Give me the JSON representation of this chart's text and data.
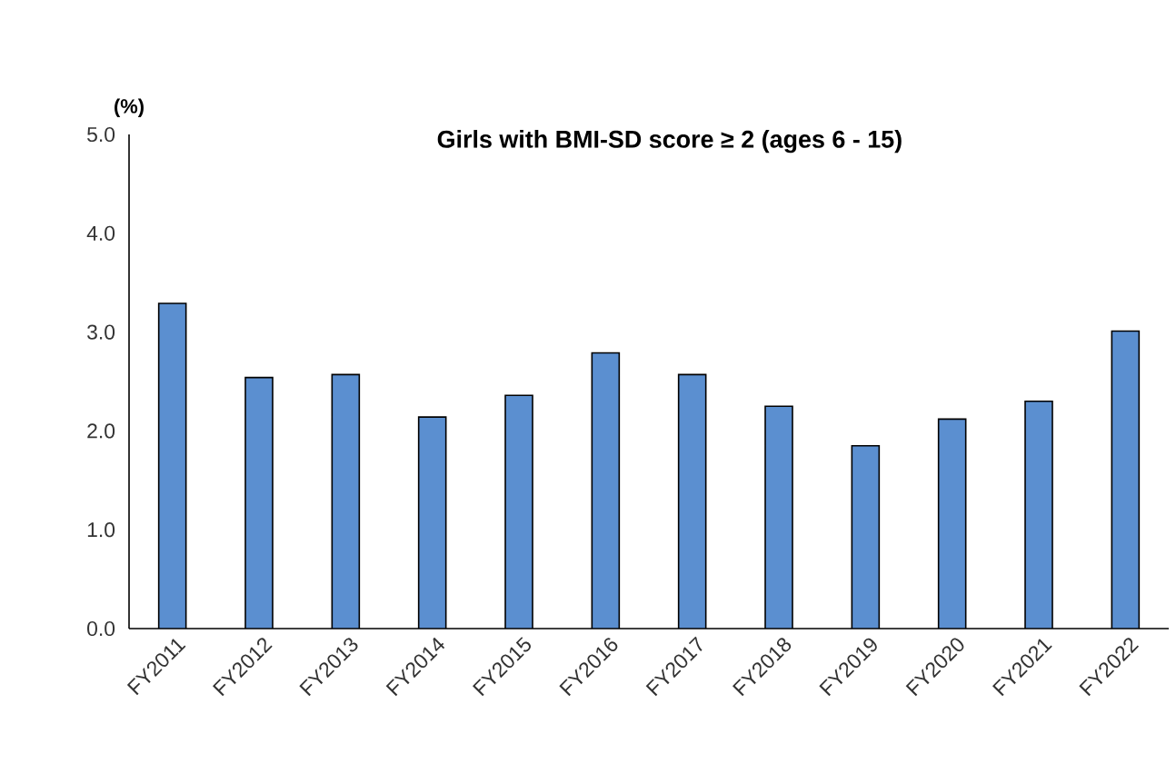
{
  "chart_data": {
    "type": "bar",
    "title": "Girls with BMI-SD score ≥ 2 (ages 6 - 15)",
    "ylabel": "(%)",
    "categories": [
      "FY2011",
      "FY2012",
      "FY2013",
      "FY2014",
      "FY2015",
      "FY2016",
      "FY2017",
      "FY2018",
      "FY2019",
      "FY2020",
      "FY2021",
      "FY2022"
    ],
    "values": [
      3.29,
      2.54,
      2.57,
      2.14,
      2.36,
      2.79,
      2.57,
      2.25,
      1.85,
      2.12,
      2.3,
      3.01
    ],
    "color": "#5b8fd0",
    "ylim": [
      0,
      5
    ],
    "yticks": [
      {
        "value": 0,
        "label": "0.0"
      },
      {
        "value": 1,
        "label": "1.0"
      },
      {
        "value": 2,
        "label": "2.0"
      },
      {
        "value": 3,
        "label": "3.0"
      },
      {
        "value": 4,
        "label": "4.0"
      },
      {
        "value": 5,
        "label": "5.0"
      }
    ]
  }
}
